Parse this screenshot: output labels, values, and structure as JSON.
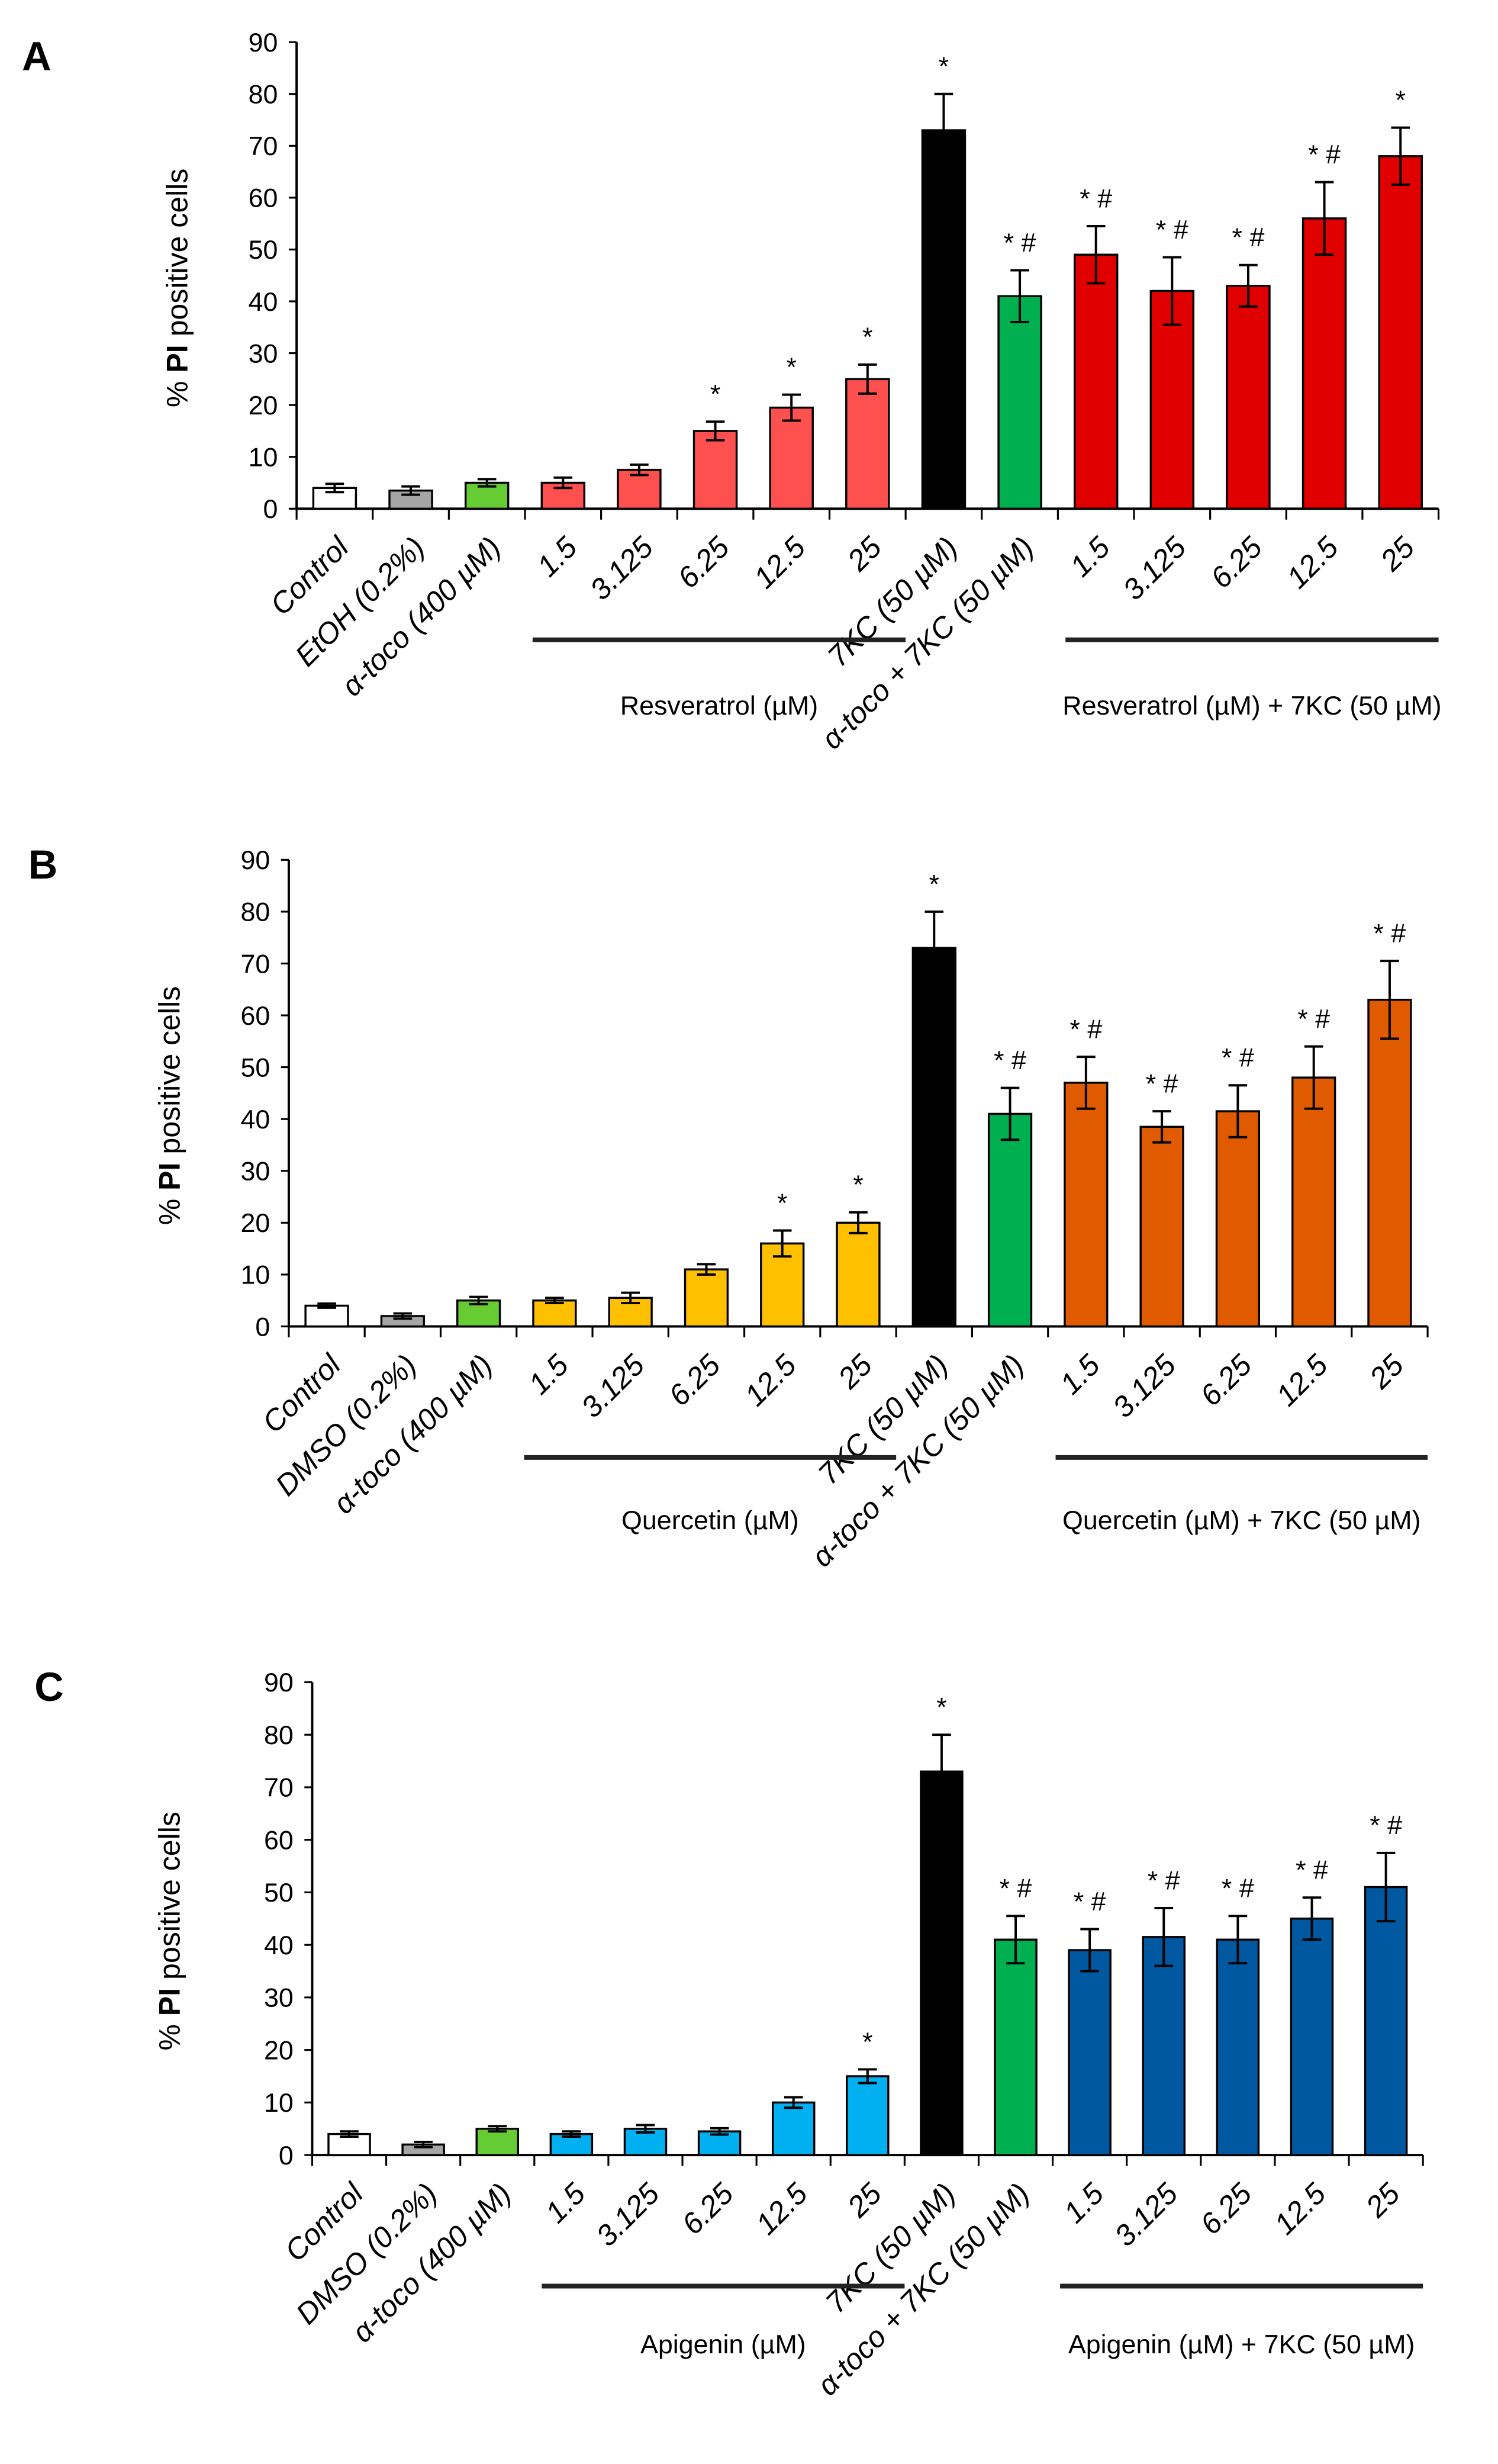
{
  "chart_data": [
    {
      "type": "bar",
      "panel": "A",
      "ylabel_prefix": "% ",
      "ylabel_bold": "PI",
      "ylabel_suffix": " positive cells",
      "ylim": [
        0,
        90
      ],
      "ytick_step": 10,
      "categories": [
        "Control",
        "EtOH (0.2%)",
        "α-toco (400 µM)",
        "1.5",
        "3.125",
        "6.25",
        "12.5",
        "25",
        "7KC (50 µM)",
        "α-toco + 7KC (50 µM)",
        "1.5",
        "3.125",
        "6.25",
        "12.5",
        "25"
      ],
      "values": [
        4,
        3.5,
        5,
        5,
        7.5,
        15,
        19.5,
        25,
        73,
        41,
        49,
        42,
        43,
        56,
        68
      ],
      "errors": [
        0.8,
        0.8,
        0.7,
        1,
        1,
        1.8,
        2.5,
        2.8,
        7,
        5,
        5.5,
        6.5,
        4,
        7,
        5.5
      ],
      "annotations": [
        "",
        "",
        "",
        "",
        "",
        "*",
        "*",
        "*",
        "*",
        "* #",
        "* #",
        "* #",
        "* #",
        "* #",
        "*"
      ],
      "colors": [
        "#ffffff",
        "#a6a6a6",
        "#66cc33",
        "#ff5050",
        "#ff5050",
        "#ff5050",
        "#ff5050",
        "#ff5050",
        "#000000",
        "#00b050",
        "#e00000",
        "#e00000",
        "#e00000",
        "#e00000",
        "#e00000"
      ],
      "groups": [
        {
          "label": "Resveratrol (µM)",
          "from": 3,
          "to": 7
        },
        {
          "label": "Resveratrol (µM)  + 7KC (50 µM)",
          "from": 10,
          "to": 14
        }
      ]
    },
    {
      "type": "bar",
      "panel": "B",
      "ylabel_prefix": "% ",
      "ylabel_bold": "PI",
      "ylabel_suffix": " positive cells",
      "ylim": [
        0,
        90
      ],
      "ytick_step": 10,
      "categories": [
        "Control",
        "DMSO (0.2%)",
        "α-toco (400 µM)",
        "1.5",
        "3.125",
        "6.25",
        "12.5",
        "25",
        "7KC (50 µM)",
        "α-toco + 7KC (50 µM)",
        "1.5",
        "3.125",
        "6.25",
        "12.5",
        "25"
      ],
      "values": [
        4,
        2,
        5,
        5,
        5.5,
        11,
        16,
        20,
        73,
        41,
        47,
        38.5,
        41.5,
        48,
        63
      ],
      "errors": [
        0.4,
        0.5,
        0.7,
        0.5,
        1,
        1,
        2.5,
        2,
        7,
        5,
        5,
        3,
        5,
        6,
        7.5
      ],
      "annotations": [
        "",
        "",
        "",
        "",
        "",
        "",
        "*",
        "*",
        "*",
        "* #",
        "* #",
        "* #",
        "* #",
        "* #",
        "* #"
      ],
      "colors": [
        "#ffffff",
        "#a6a6a6",
        "#66cc33",
        "#ffc000",
        "#ffc000",
        "#ffc000",
        "#ffc000",
        "#ffc000",
        "#000000",
        "#00b050",
        "#e05a00",
        "#e05a00",
        "#e05a00",
        "#e05a00",
        "#e05a00"
      ],
      "groups": [
        {
          "label": "Quercetin (µM)",
          "from": 3,
          "to": 7
        },
        {
          "label": "Quercetin (µM)  + 7KC (50 µM)",
          "from": 10,
          "to": 14
        }
      ]
    },
    {
      "type": "bar",
      "panel": "C",
      "ylabel_prefix": "% ",
      "ylabel_bold": "PI",
      "ylabel_suffix": " positive cells",
      "ylim": [
        0,
        90
      ],
      "ytick_step": 10,
      "categories": [
        "Control",
        "DMSO (0.2%)",
        "α-toco (400 µM)",
        "1.5",
        "3.125",
        "6.25",
        "12.5",
        "25",
        "7KC (50 µM)",
        "α-toco + 7KC (50 µM)",
        "1.5",
        "3.125",
        "6.25",
        "12.5",
        "25"
      ],
      "values": [
        4,
        2,
        5,
        4,
        5,
        4.5,
        10,
        15,
        73,
        41,
        39,
        41.5,
        41,
        45,
        51
      ],
      "errors": [
        0.5,
        0.5,
        0.5,
        0.5,
        0.7,
        0.6,
        1,
        1.3,
        7,
        4.5,
        4,
        5.5,
        4.5,
        4,
        6.5
      ],
      "annotations": [
        "",
        "",
        "",
        "",
        "",
        "",
        "",
        "*",
        "*",
        "* #",
        "* #",
        "* #",
        "* #",
        "* #",
        "* #"
      ],
      "colors": [
        "#ffffff",
        "#a6a6a6",
        "#66cc33",
        "#00b0f0",
        "#00b0f0",
        "#00b0f0",
        "#00b0f0",
        "#00b0f0",
        "#000000",
        "#00b050",
        "#0058a0",
        "#0058a0",
        "#0058a0",
        "#0058a0",
        "#0058a0"
      ],
      "groups": [
        {
          "label": "Apigenin (µM)",
          "from": 3,
          "to": 7
        },
        {
          "label": "Apigenin (µM)  + 7KC (50 µM)",
          "from": 10,
          "to": 14
        }
      ]
    }
  ]
}
